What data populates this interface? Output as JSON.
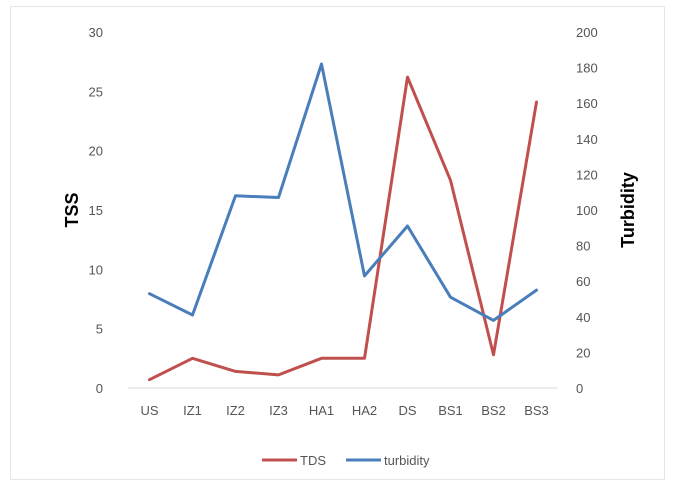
{
  "chart_data": {
    "type": "line",
    "categories": [
      "US",
      "IZ1",
      "IZ2",
      "IZ3",
      "HA1",
      "HA2",
      "DS",
      "BS1",
      "BS2",
      "BS3"
    ],
    "series": [
      {
        "name": "TDS",
        "axis": "left",
        "color": "#c0504d",
        "values": [
          0.7,
          2.5,
          1.4,
          1.1,
          2.5,
          2.5,
          26.2,
          17.5,
          2.8,
          24.1
        ]
      },
      {
        "name": "turbidity",
        "axis": "right",
        "color": "#4a7ebb",
        "values": [
          53,
          41,
          108,
          107,
          182,
          63,
          91,
          51,
          38,
          55
        ]
      }
    ],
    "ylabel": "TSS",
    "ylabel_right": "Turbidity",
    "ylim": [
      0,
      30
    ],
    "ylim_right": [
      0,
      200
    ],
    "yticks": [
      "0",
      "5",
      "10",
      "15",
      "20",
      "25",
      "30"
    ],
    "yticks_right": [
      "0",
      "20",
      "40",
      "60",
      "80",
      "100",
      "120",
      "140",
      "160",
      "180",
      "200"
    ],
    "grid": false,
    "legend": "bottom"
  }
}
